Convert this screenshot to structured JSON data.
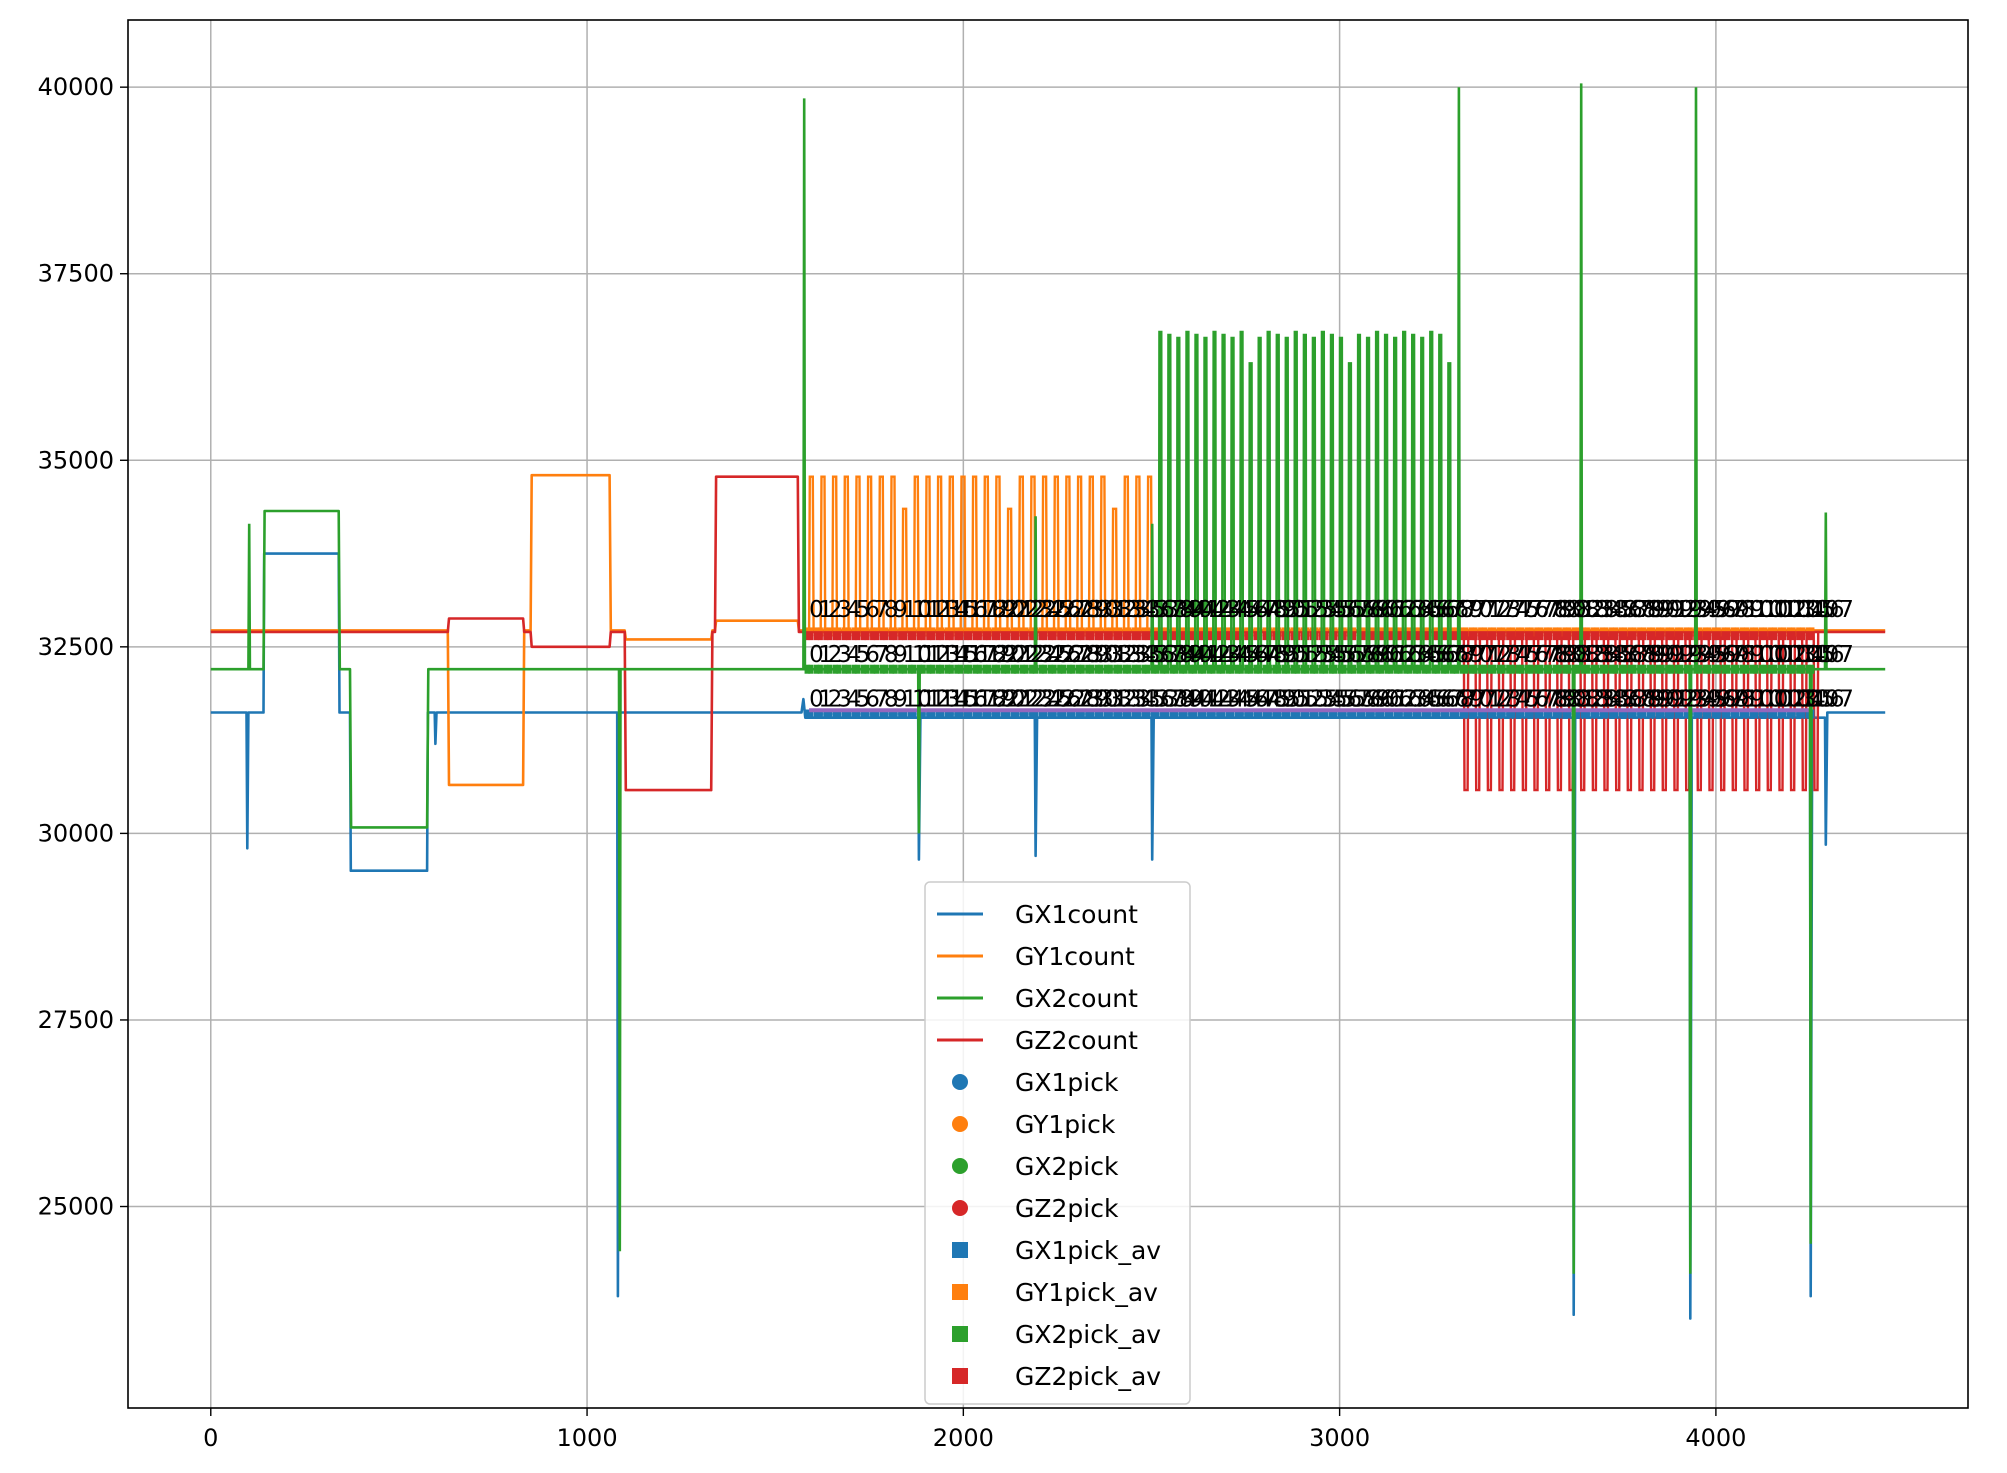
{
  "chart_data": {
    "type": "line",
    "title": "",
    "xlabel": "",
    "ylabel": "",
    "xlim": [
      -220,
      4670
    ],
    "ylim": [
      22300,
      40900
    ],
    "grid": true,
    "legend_placement": "lower-center",
    "xticks": [
      0,
      1000,
      2000,
      3000,
      4000
    ],
    "yticks": [
      25000,
      27500,
      30000,
      32500,
      35000,
      37500,
      40000
    ],
    "colors": {
      "blue": "#1f77b4",
      "orange": "#ff7f0e",
      "green": "#2ca02c",
      "red": "#d62728",
      "purple": "#9467bd"
    },
    "series": [
      {
        "name": "GX1count",
        "kind": "line",
        "color": "#1f77b4",
        "segments": [
          [
            0,
            31620
          ],
          [
            95,
            31620
          ],
          [
            97,
            29800
          ],
          [
            100,
            31620
          ],
          [
            140,
            31620
          ],
          [
            142,
            33750
          ],
          [
            340,
            33750
          ],
          [
            342,
            31620
          ],
          [
            370,
            31620
          ],
          [
            372,
            29500
          ],
          [
            575,
            29500
          ],
          [
            577,
            31620
          ],
          [
            595,
            31620
          ],
          [
            597,
            31200
          ],
          [
            600,
            31620
          ],
          [
            1080,
            31620
          ],
          [
            1082,
            23800
          ],
          [
            1086,
            31620
          ],
          [
            1570,
            31620
          ],
          [
            1575,
            31800
          ],
          [
            1580,
            31550
          ],
          [
            1880,
            31550
          ],
          [
            1882,
            29650
          ],
          [
            1886,
            31550
          ],
          [
            2190,
            31550
          ],
          [
            2192,
            29700
          ],
          [
            2196,
            31550
          ],
          [
            2500,
            31550
          ],
          [
            2502,
            29650
          ],
          [
            2506,
            31550
          ],
          [
            3620,
            31550
          ],
          [
            3622,
            23550
          ],
          [
            3626,
            31550
          ],
          [
            3930,
            31550
          ],
          [
            3932,
            23500
          ],
          [
            3936,
            31550
          ],
          [
            4250,
            31550
          ],
          [
            4252,
            23800
          ],
          [
            4256,
            31550
          ],
          [
            4290,
            31550
          ],
          [
            4292,
            29850
          ],
          [
            4296,
            31620
          ],
          [
            4450,
            31620
          ]
        ]
      },
      {
        "name": "GY1count",
        "kind": "line",
        "color": "#ff7f0e",
        "base": 32720,
        "high": 34780,
        "lowlevel": 30650,
        "plateaus": [
          [
            850,
            1060,
            34800
          ],
          [
            630,
            830,
            30650
          ],
          [
            1100,
            1330,
            32600
          ],
          [
            1340,
            1560,
            32850
          ]
        ],
        "pulse_range": [
          1590,
          2510
        ],
        "pulse_period": 31,
        "pulse_high": 34780
      },
      {
        "name": "GX2count",
        "kind": "line",
        "color": "#2ca02c",
        "base": 32200,
        "plateaus": [
          [
            140,
            340,
            34320
          ],
          [
            370,
            575,
            30080
          ]
        ],
        "pulse_range": [
          2520,
          3310
        ],
        "pulse_period": 24,
        "pulse_high": 36720,
        "spikes": [
          [
            100,
            34150
          ],
          [
            1575,
            39850
          ],
          [
            1085,
            24400
          ],
          [
            1880,
            30000
          ],
          [
            2190,
            34250
          ],
          [
            2500,
            34150
          ],
          [
            3315,
            40000
          ],
          [
            3620,
            24100
          ],
          [
            3640,
            40050
          ],
          [
            3930,
            24100
          ],
          [
            3945,
            40000
          ],
          [
            4250,
            24500
          ],
          [
            4290,
            34300
          ]
        ]
      },
      {
        "name": "GZ2count",
        "kind": "line",
        "color": "#d62728",
        "base": 32700,
        "plateaus": [
          [
            630,
            830,
            32880
          ],
          [
            850,
            1060,
            32500
          ],
          [
            1100,
            1330,
            30580
          ],
          [
            1340,
            1560,
            34780
          ]
        ],
        "pulse_range": [
          3330,
          4270
        ],
        "pulse_period": 31,
        "pulse_low": 30580
      },
      {
        "name": "GX1pick",
        "kind": "dot",
        "color": "#1f77b4",
        "y": 31600,
        "x_range": [
          1590,
          4250
        ]
      },
      {
        "name": "GY1pick",
        "kind": "dot",
        "color": "#ff7f0e",
        "y": 32700,
        "x_range": [
          1590,
          4250
        ]
      },
      {
        "name": "GX2pick",
        "kind": "dot",
        "color": "#2ca02c",
        "y": 32200,
        "x_range": [
          1590,
          4250
        ]
      },
      {
        "name": "GZ2pick",
        "kind": "dot",
        "color": "#d62728",
        "y": 32650,
        "x_range": [
          1590,
          4250
        ]
      },
      {
        "name": "GX1pick_av",
        "kind": "square",
        "color": "#1f77b4",
        "y": 31600,
        "x_range": [
          1590,
          4250
        ]
      },
      {
        "name": "GY1pick_av",
        "kind": "square",
        "color": "#ff7f0e",
        "y": 32700,
        "x_range": [
          1590,
          4250
        ]
      },
      {
        "name": "GX2pick_av",
        "kind": "square",
        "color": "#2ca02c",
        "y": 32200,
        "x_range": [
          1590,
          4250
        ]
      },
      {
        "name": "GZ2pick_av",
        "kind": "square",
        "color": "#d62728",
        "y": 32650,
        "x_range": [
          1590,
          4250
        ]
      }
    ],
    "annotation_rows": [
      {
        "y": 32900,
        "labels": [
          "0",
          "1",
          "2",
          "3",
          "4",
          "5",
          "6",
          "7",
          "8",
          "9",
          "10",
          "11",
          "12",
          "13",
          "14",
          "15",
          "16",
          "17",
          "18",
          "19",
          "20",
          "21",
          "22",
          "23",
          "24",
          "25",
          "26",
          "27",
          "28",
          "29",
          "30",
          "31",
          "32",
          "33",
          "34",
          "35",
          "36",
          "37",
          "38",
          "39",
          "40",
          "41",
          "42",
          "43",
          "44",
          "45",
          "46",
          "47",
          "48",
          "49",
          "50",
          "51",
          "52",
          "53",
          "54",
          "55",
          "56",
          "57",
          "58",
          "59",
          "60",
          "61",
          "62",
          "63",
          "64",
          "65",
          "66",
          "67",
          "68",
          "69",
          "70",
          "71",
          "72",
          "73",
          "74",
          "75",
          "76",
          "77",
          "78",
          "79",
          "80",
          "81",
          "82",
          "83",
          "84",
          "85",
          "86",
          "87",
          "88",
          "89",
          "90",
          "91",
          "92",
          "93",
          "94",
          "95",
          "96",
          "97",
          "98",
          "99",
          "100",
          "101",
          "102",
          "103",
          "104",
          "105",
          "106",
          "107"
        ]
      },
      {
        "y": 32300,
        "labels": [
          "0",
          "1",
          "2",
          "3",
          "4",
          "5",
          "6",
          "7",
          "8",
          "9",
          "10",
          "11",
          "12",
          "13",
          "14",
          "15",
          "16",
          "17",
          "18",
          "19",
          "20",
          "21",
          "22",
          "23",
          "24",
          "25",
          "26",
          "27",
          "28",
          "29",
          "30",
          "31",
          "32",
          "33",
          "34",
          "35",
          "36",
          "37",
          "38",
          "39",
          "40",
          "41",
          "42",
          "43",
          "44",
          "45",
          "46",
          "47",
          "48",
          "49",
          "50",
          "51",
          "52",
          "53",
          "54",
          "55",
          "56",
          "57",
          "58",
          "59",
          "60",
          "61",
          "62",
          "63",
          "64",
          "65",
          "66",
          "67",
          "68",
          "69",
          "70",
          "71",
          "72",
          "73",
          "74",
          "75",
          "76",
          "77",
          "78",
          "79",
          "80",
          "81",
          "82",
          "83",
          "84",
          "85",
          "86",
          "87",
          "88",
          "89",
          "90",
          "91",
          "92",
          "93",
          "94",
          "95",
          "96",
          "97",
          "98",
          "99",
          "100",
          "101",
          "102",
          "103",
          "104",
          "105",
          "106",
          "107"
        ]
      },
      {
        "y": 31700,
        "labels": [
          "0",
          "1",
          "2",
          "3",
          "4",
          "5",
          "6",
          "7",
          "8",
          "9",
          "10",
          "11",
          "12",
          "13",
          "14",
          "15",
          "16",
          "17",
          "18",
          "19",
          "20",
          "21",
          "22",
          "23",
          "24",
          "25",
          "26",
          "27",
          "28",
          "29",
          "30",
          "31",
          "32",
          "33",
          "34",
          "35",
          "36",
          "37",
          "38",
          "39",
          "40",
          "41",
          "42",
          "43",
          "44",
          "45",
          "46",
          "47",
          "48",
          "49",
          "50",
          "51",
          "52",
          "53",
          "54",
          "55",
          "56",
          "57",
          "58",
          "59",
          "60",
          "61",
          "62",
          "63",
          "64",
          "65",
          "66",
          "67",
          "68",
          "69",
          "70",
          "71",
          "72",
          "73",
          "74",
          "75",
          "76",
          "77",
          "78",
          "79",
          "80",
          "81",
          "82",
          "83",
          "84",
          "85",
          "86",
          "87",
          "88",
          "89",
          "90",
          "91",
          "92",
          "93",
          "94",
          "95",
          "96",
          "97",
          "98",
          "99",
          "100",
          "101",
          "102",
          "103",
          "104",
          "105",
          "106",
          "107"
        ]
      }
    ],
    "annotation_x_range": [
      1590,
      4250
    ]
  }
}
